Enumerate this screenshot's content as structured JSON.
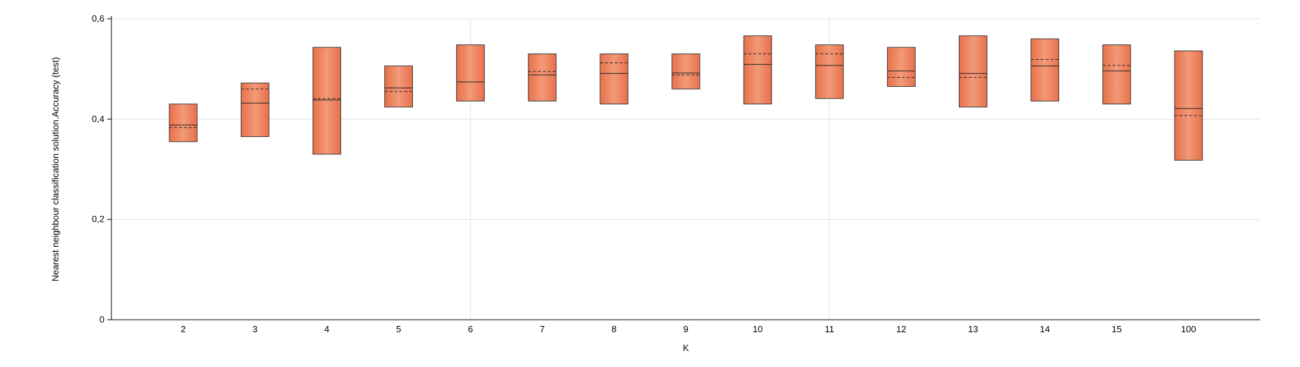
{
  "chart_data": {
    "type": "box",
    "title": "",
    "xlabel": "K",
    "ylabel": "Nearest neighbour classification solution.Accuracy (test)",
    "ylim": [
      0,
      0.6
    ],
    "yticks": [
      0,
      0.2,
      0.4,
      0.6
    ],
    "ytick_labels": [
      "0",
      "0,2",
      "0,4",
      "0,6"
    ],
    "grid": true,
    "legend": "none",
    "colors": {
      "box_edge": "#e8704a",
      "box_center": "#f29a78",
      "outline": "#3a3a3a",
      "grid": "#dde3ea"
    },
    "categories": [
      "2",
      "3",
      "4",
      "5",
      "6",
      "7",
      "8",
      "9",
      "10",
      "11",
      "12",
      "13",
      "14",
      "15",
      "100"
    ],
    "boxes": [
      {
        "category": "2",
        "low": 0.355,
        "high": 0.43,
        "median": 0.388,
        "mean": 0.383
      },
      {
        "category": "3",
        "low": 0.365,
        "high": 0.472,
        "median": 0.432,
        "mean": 0.46
      },
      {
        "category": "4",
        "low": 0.33,
        "high": 0.543,
        "median": 0.438,
        "mean": 0.441
      },
      {
        "category": "5",
        "low": 0.424,
        "high": 0.506,
        "median": 0.462,
        "mean": 0.455
      },
      {
        "category": "6",
        "low": 0.436,
        "high": 0.548,
        "median": 0.474,
        "mean": null
      },
      {
        "category": "7",
        "low": 0.436,
        "high": 0.53,
        "median": 0.488,
        "mean": 0.495
      },
      {
        "category": "8",
        "low": 0.43,
        "high": 0.53,
        "median": 0.491,
        "mean": 0.512
      },
      {
        "category": "9",
        "low": 0.46,
        "high": 0.53,
        "median": 0.492,
        "mean": 0.488
      },
      {
        "category": "10",
        "low": 0.43,
        "high": 0.566,
        "median": 0.509,
        "mean": 0.53
      },
      {
        "category": "11",
        "low": 0.441,
        "high": 0.548,
        "median": 0.507,
        "mean": 0.53
      },
      {
        "category": "12",
        "low": 0.465,
        "high": 0.543,
        "median": 0.496,
        "mean": 0.483
      },
      {
        "category": "13",
        "low": 0.424,
        "high": 0.566,
        "median": 0.491,
        "mean": 0.483
      },
      {
        "category": "14",
        "low": 0.436,
        "high": 0.56,
        "median": 0.506,
        "mean": 0.519
      },
      {
        "category": "15",
        "low": 0.43,
        "high": 0.548,
        "median": 0.496,
        "mean": 0.507
      },
      {
        "category": "100",
        "low": 0.318,
        "high": 0.536,
        "median": 0.421,
        "mean": 0.407
      }
    ]
  }
}
